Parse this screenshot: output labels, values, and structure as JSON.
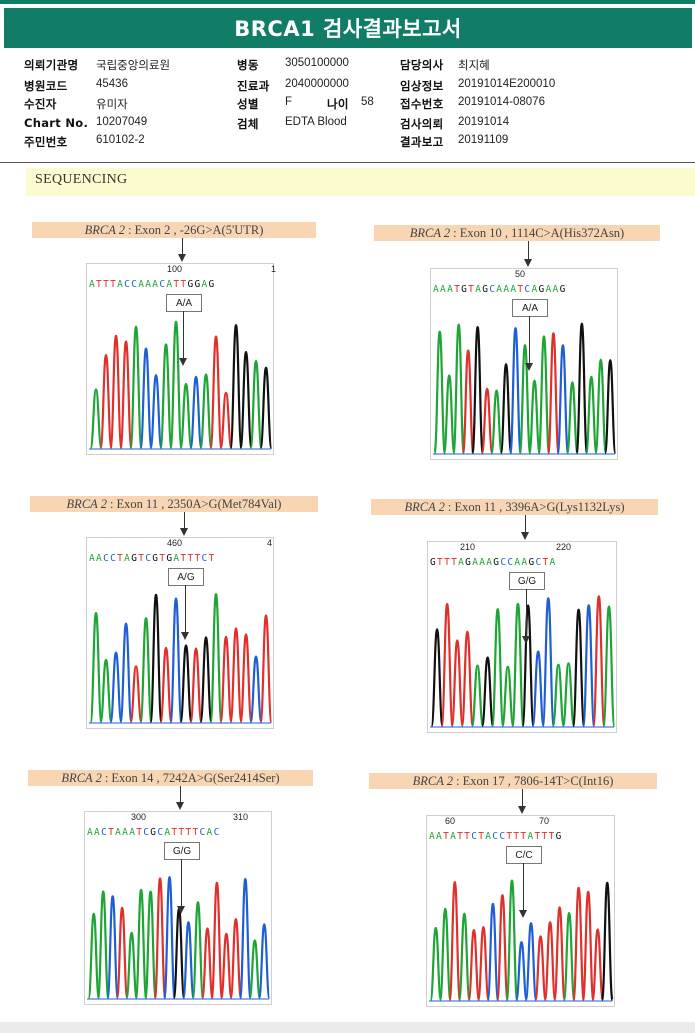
{
  "report": {
    "title": "BRCA1 검사결과보고서"
  },
  "info": {
    "col1": [
      {
        "label": "의뢰기관명",
        "value": "국립중앙의료원"
      },
      {
        "label": "병원코드",
        "value": "45436"
      },
      {
        "label": "수진자",
        "value": "유미자"
      },
      {
        "label": "Chart No.",
        "value": "10207049"
      },
      {
        "label": "주민번호",
        "value": "610102-2"
      }
    ],
    "col2": [
      {
        "label": "병동",
        "value": "3050100000"
      },
      {
        "label": "진료과",
        "value": "2040000000"
      },
      {
        "label": "성별",
        "value": "F"
      },
      {
        "label": "검체",
        "value": "EDTA Blood"
      }
    ],
    "age": {
      "label": "나이",
      "value": "58"
    },
    "col3": [
      {
        "label": "담당의사",
        "value": "최지혜"
      },
      {
        "label": "임상정보",
        "value": "20191014E200010"
      },
      {
        "label": "접수번호",
        "value": "20191014-08076"
      },
      {
        "label": "검사의뢰",
        "value": "20191014"
      },
      {
        "label": "결과보고",
        "value": "20191109"
      }
    ]
  },
  "section": {
    "title": "SEQUENCING"
  },
  "panels": [
    {
      "gene": "BRCA 2",
      "detail": ": Exon 2 , -26G>A(5'UTR)",
      "genotype": "A/A",
      "sequence": "ATTTACCAAACATTGGAG",
      "positions": [
        "100",
        "1"
      ]
    },
    {
      "gene": "BRCA 2",
      "detail": ": Exon 10 , 1114C>A(His372Asn)",
      "genotype": "A/A",
      "sequence": "AAATGTAGCAAATCAGAAG",
      "positions": [
        "50"
      ]
    },
    {
      "gene": "BRCA 2",
      "detail": ": Exon 11 , 2350A>G(Met784Val)",
      "genotype": "A/G",
      "sequence": "AACCTAGTCGTGATTTCT",
      "positions": [
        "460",
        "4"
      ]
    },
    {
      "gene": "BRCA 2",
      "detail": ": Exon 11 , 3396A>G(Lys1132Lys)",
      "genotype": "G/G",
      "sequence": "GTTTAGAAAGCCAAGCTA",
      "positions": [
        "210",
        "220"
      ]
    },
    {
      "gene": "BRCA 2",
      "detail": ": Exon 14 , 7242A>G(Ser2414Ser)",
      "genotype": "G/G",
      "sequence": "AACTAAATCGCATTTTCAC",
      "positions": [
        "300",
        "310"
      ]
    },
    {
      "gene": "BRCA 2",
      "detail": ": Exon 17 , 7806-14T>C(Int16)",
      "genotype": "C/C",
      "sequence": "AATATTCTACCTTTATTTG",
      "positions": [
        "60",
        "70"
      ]
    }
  ],
  "colors": {
    "A": "#1fa535",
    "C": "#1f5fd6",
    "G": "#111111",
    "T": "#e0302c",
    "title_bar": "#127d66",
    "label_bg": "#f8d6b4",
    "section_bg": "#fdfcd0"
  }
}
